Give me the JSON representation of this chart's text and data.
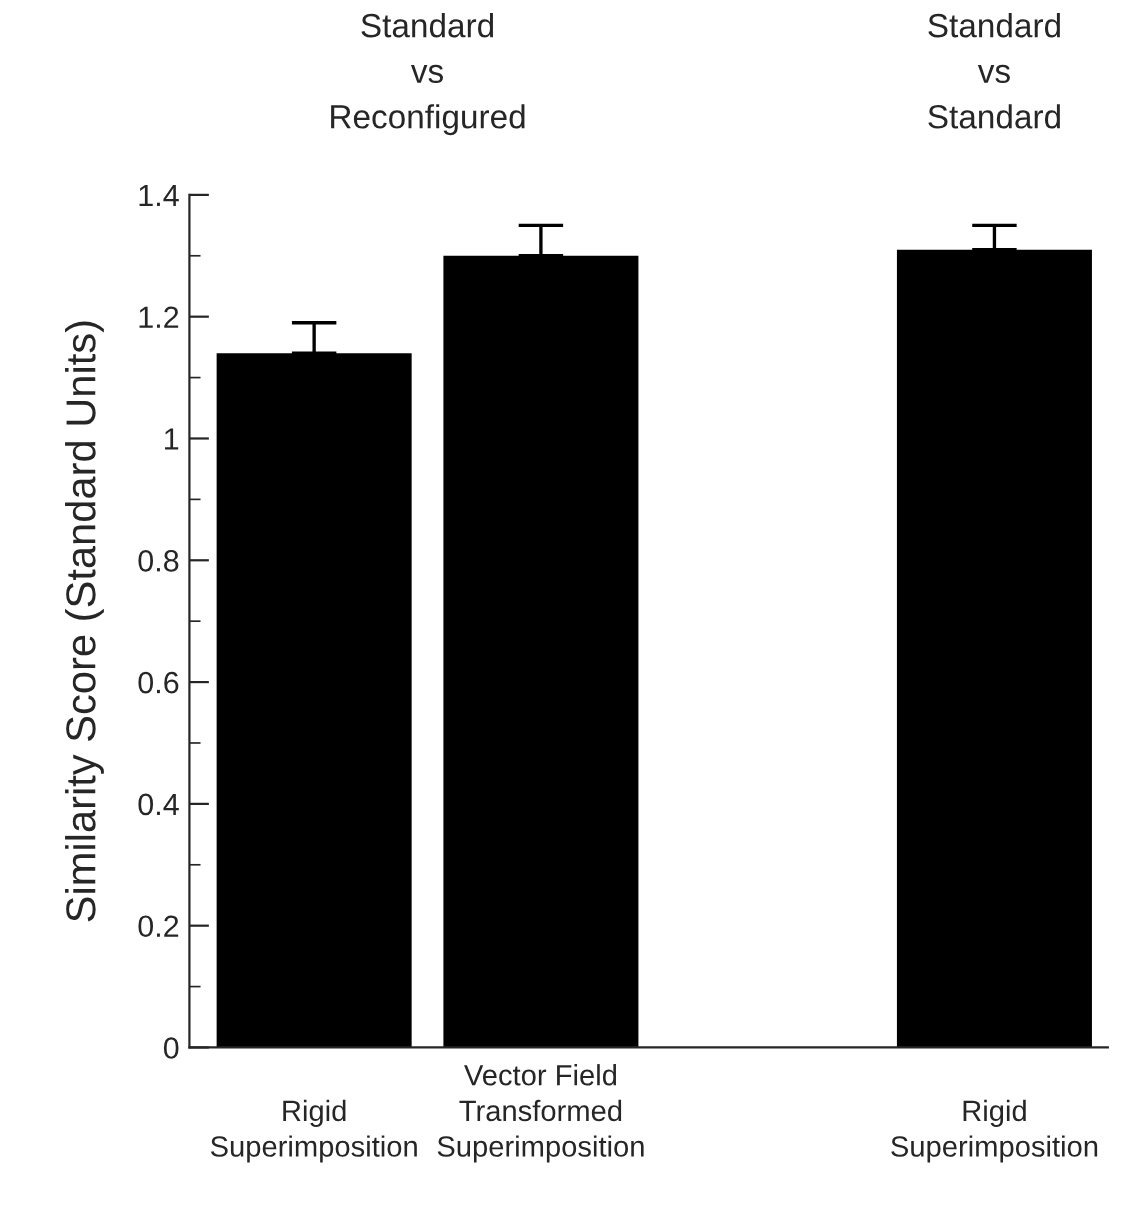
{
  "chart_data": {
    "type": "bar",
    "categories": [
      "Rigid\nSuperimposition",
      "Vector Field\nTransformed\nSuperimposition",
      null,
      "Rigid\nSuperimposition"
    ],
    "values": [
      1.14,
      1.3,
      null,
      1.31
    ],
    "errors": [
      0.05,
      0.05,
      null,
      0.04
    ],
    "color": "#000000",
    "ylabel": "Similarity Score (Standard Units)",
    "ylim": [
      0,
      1.4
    ],
    "yticks": [
      0,
      0.2,
      0.4,
      0.6,
      0.8,
      1,
      1.2,
      1.4
    ],
    "annotations": [
      "Standard\nvs\nReconfigured",
      "Standard\nvs\nStandard"
    ],
    "grid": false,
    "legend": false
  }
}
